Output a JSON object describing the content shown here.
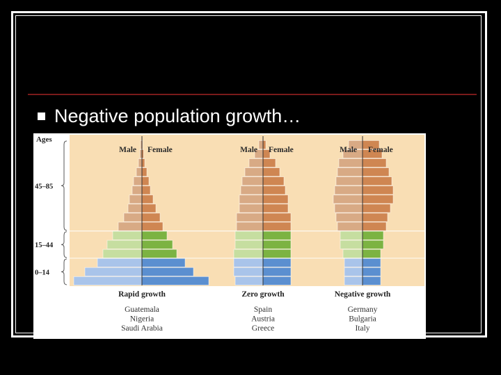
{
  "slide": {
    "bullet_text": "Negative population growth…",
    "colors": {
      "background": "#000000",
      "rule": "#7a1a1a",
      "text": "#ffffff"
    }
  },
  "chart_data": {
    "type": "bar",
    "chart_kind": "population-pyramids",
    "age_axis_title": "Ages",
    "age_groups": [
      "0–14",
      "15–44",
      "45–85"
    ],
    "sex_labels": {
      "male": "Male",
      "female": "Female"
    },
    "colors": {
      "background": "#f9deb4",
      "young_male": "#a9c4ea",
      "young_female": "#5b8fd0",
      "adult_male": "#c6dea0",
      "adult_female": "#7cb342",
      "old_male": "#d8aa85",
      "old_female": "#cf8652"
    },
    "pyramids": [
      {
        "title": "Rapid growth",
        "countries": [
          "Guatemala",
          "Nigeria",
          "Saudi Arabia"
        ],
        "male": [
          4.9,
          4.1,
          3.2,
          2.8,
          2.5,
          2.1,
          1.7,
          1.3,
          1.0,
          0.9,
          0.7,
          0.6,
          0.4,
          0.25,
          0.15,
          0.1
        ],
        "female": [
          4.8,
          3.7,
          3.1,
          2.5,
          2.2,
          1.8,
          1.5,
          1.3,
          1.0,
          0.8,
          0.6,
          0.5,
          0.35,
          0.2,
          0.12,
          0.05
        ]
      },
      {
        "title": "Zero growth",
        "countries": [
          "Spain",
          "Austria",
          "Greece"
        ],
        "male": [
          2.0,
          2.1,
          2.1,
          2.1,
          2.0,
          2.0,
          1.9,
          1.9,
          1.7,
          1.7,
          1.6,
          1.5,
          1.3,
          1.0,
          0.6,
          0.3
        ],
        "female": [
          2.0,
          2.0,
          2.0,
          2.0,
          2.0,
          2.0,
          2.0,
          2.0,
          1.8,
          1.8,
          1.6,
          1.5,
          1.2,
          0.9,
          0.5,
          0.2
        ]
      },
      {
        "title": "Negative growth",
        "countries": [
          "Germany",
          "Bulgaria",
          "Italy"
        ],
        "male": [
          1.3,
          1.3,
          1.3,
          1.4,
          1.6,
          1.6,
          1.8,
          1.9,
          2.0,
          2.1,
          2.0,
          1.9,
          1.8,
          1.7,
          1.4,
          1.0
        ],
        "female": [
          1.3,
          1.3,
          1.3,
          1.3,
          1.5,
          1.5,
          1.7,
          1.8,
          2.0,
          2.2,
          2.2,
          2.1,
          1.9,
          1.7,
          1.4,
          1.2
        ]
      }
    ]
  }
}
